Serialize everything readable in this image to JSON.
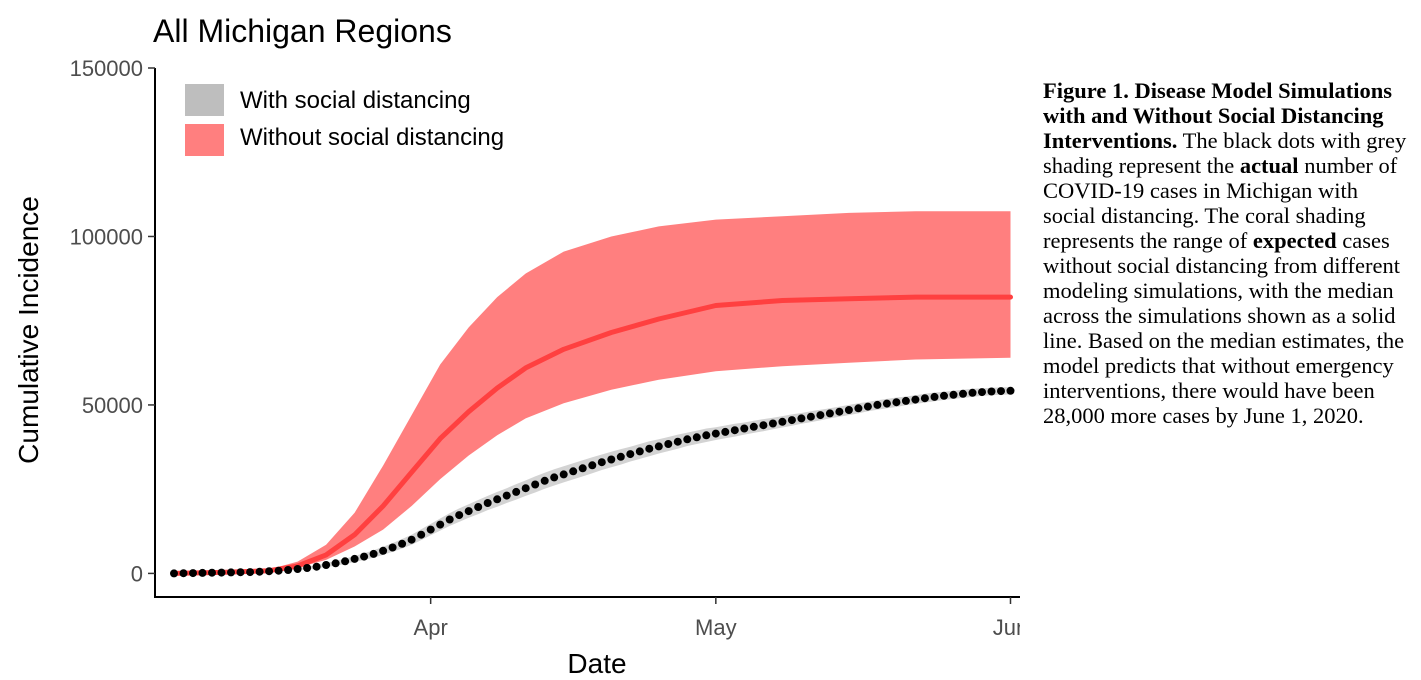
{
  "chart_data": {
    "type": "line",
    "title": "All Michigan Regions",
    "xlabel": "Date",
    "ylabel": "Cumulative Incidence",
    "x_type": "date",
    "xlim": [
      "2020-03-03",
      "2020-06-02"
    ],
    "ylim": [
      -7000,
      150000
    ],
    "yticks": [
      0,
      50000,
      100000,
      150000
    ],
    "ytick_labels": [
      "0",
      "50000",
      "100000",
      "150000"
    ],
    "xticks": [
      "2020-04-01",
      "2020-05-01",
      "2020-06-01"
    ],
    "xtick_labels": [
      "Apr",
      "May",
      "Jun"
    ],
    "grid": false,
    "legend_position": "top-left",
    "legend": [
      {
        "label": "With social distancing",
        "color": "#bebebe"
      },
      {
        "label": "Without social distancing",
        "color": "#ff7f7f"
      }
    ],
    "series": [
      {
        "name": "Without social distancing",
        "kind": "median-line-with-range",
        "color": "#ff4040",
        "band_color": "#ff7f7f",
        "x": [
          "2020-03-05",
          "2020-03-10",
          "2020-03-15",
          "2020-03-18",
          "2020-03-21",
          "2020-03-24",
          "2020-03-27",
          "2020-03-30",
          "2020-04-02",
          "2020-04-05",
          "2020-04-08",
          "2020-04-11",
          "2020-04-15",
          "2020-04-20",
          "2020-04-25",
          "2020-05-01",
          "2020-05-08",
          "2020-05-15",
          "2020-05-22",
          "2020-06-01"
        ],
        "median": [
          0,
          300,
          800,
          2200,
          5500,
          11500,
          20000,
          30000,
          40000,
          48000,
          55000,
          61000,
          66500,
          71500,
          75500,
          79500,
          81000,
          81500,
          82000,
          82000
        ],
        "lower": [
          0,
          200,
          600,
          1700,
          4000,
          8000,
          13000,
          20000,
          28000,
          35000,
          41000,
          46000,
          50500,
          54500,
          57500,
          60000,
          61500,
          62500,
          63500,
          64000
        ],
        "upper": [
          0,
          400,
          1200,
          3500,
          8500,
          18000,
          32000,
          47000,
          62000,
          73000,
          82000,
          89000,
          95500,
          100000,
          103000,
          105000,
          106000,
          107000,
          107500,
          107500
        ]
      },
      {
        "name": "With social distancing",
        "kind": "points-with-band",
        "color": "#000000",
        "band_color": "#d3d3d3",
        "x": [
          "2020-03-05",
          "2020-03-06",
          "2020-03-07",
          "2020-03-08",
          "2020-03-09",
          "2020-03-10",
          "2020-03-11",
          "2020-03-12",
          "2020-03-13",
          "2020-03-14",
          "2020-03-15",
          "2020-03-16",
          "2020-03-17",
          "2020-03-18",
          "2020-03-19",
          "2020-03-20",
          "2020-03-21",
          "2020-03-22",
          "2020-03-23",
          "2020-03-24",
          "2020-03-25",
          "2020-03-26",
          "2020-03-27",
          "2020-03-28",
          "2020-03-29",
          "2020-03-30",
          "2020-03-31",
          "2020-04-01",
          "2020-04-02",
          "2020-04-03",
          "2020-04-04",
          "2020-04-05",
          "2020-04-06",
          "2020-04-07",
          "2020-04-08",
          "2020-04-09",
          "2020-04-10",
          "2020-04-11",
          "2020-04-12",
          "2020-04-13",
          "2020-04-14",
          "2020-04-15",
          "2020-04-16",
          "2020-04-17",
          "2020-04-18",
          "2020-04-19",
          "2020-04-20",
          "2020-04-21",
          "2020-04-22",
          "2020-04-23",
          "2020-04-24",
          "2020-04-25",
          "2020-04-26",
          "2020-04-27",
          "2020-04-28",
          "2020-04-29",
          "2020-04-30",
          "2020-05-01",
          "2020-05-02",
          "2020-05-03",
          "2020-05-04",
          "2020-05-05",
          "2020-05-06",
          "2020-05-07",
          "2020-05-08",
          "2020-05-09",
          "2020-05-10",
          "2020-05-11",
          "2020-05-12",
          "2020-05-13",
          "2020-05-14",
          "2020-05-15",
          "2020-05-16",
          "2020-05-17",
          "2020-05-18",
          "2020-05-19",
          "2020-05-20",
          "2020-05-21",
          "2020-05-22",
          "2020-05-23",
          "2020-05-24",
          "2020-05-25",
          "2020-05-26",
          "2020-05-27",
          "2020-05-28",
          "2020-05-29",
          "2020-05-30",
          "2020-05-31",
          "2020-06-01"
        ],
        "values": [
          0,
          50,
          100,
          150,
          200,
          250,
          300,
          350,
          400,
          500,
          650,
          800,
          1000,
          1300,
          1600,
          2000,
          2500,
          3000,
          3600,
          4300,
          5000,
          5800,
          6700,
          7700,
          8800,
          10000,
          11500,
          13000,
          14500,
          16000,
          17300,
          18500,
          19700,
          20900,
          22000,
          23100,
          24200,
          25300,
          26400,
          27500,
          28500,
          29400,
          30300,
          31200,
          32100,
          33000,
          33800,
          34600,
          35400,
          36200,
          37000,
          37700,
          38400,
          39100,
          39800,
          40400,
          41000,
          41500,
          42000,
          42500,
          43000,
          43500,
          44000,
          44500,
          45000,
          45500,
          46000,
          46500,
          47000,
          47500,
          48000,
          48500,
          49000,
          49500,
          50000,
          50400,
          50800,
          51200,
          51600,
          52000,
          52400,
          52700,
          53000,
          53300,
          53600,
          53800,
          54000,
          54100,
          54200
        ],
        "band_halfwidth": [
          0,
          0,
          0,
          0,
          0,
          0,
          50,
          50,
          100,
          100,
          150,
          200,
          250,
          300,
          400,
          500,
          600,
          700,
          800,
          900,
          1000,
          1100,
          1200,
          1300,
          1400,
          1500,
          1600,
          1700,
          1800,
          1900,
          2000,
          2000,
          2100,
          2100,
          2200,
          2200,
          2300,
          2300,
          2400,
          2400,
          2400,
          2400,
          2400,
          2400,
          2400,
          2300,
          2300,
          2300,
          2200,
          2200,
          2200,
          2100,
          2100,
          2100,
          2000,
          2000,
          2000,
          1900,
          1900,
          1900,
          1800,
          1800,
          1800,
          1700,
          1700,
          1700,
          1600,
          1600,
          1600,
          1500,
          1500,
          1500,
          1500,
          1400,
          1400,
          1400,
          1400,
          1300,
          1300,
          1300,
          1300,
          1200,
          1200,
          1200,
          1200,
          1100,
          1100,
          1100,
          1100
        ]
      }
    ]
  },
  "caption": {
    "heading": "Figure 1. Disease Model Simulations with and Without Social Distancing Interventions.",
    "t1": " The black dots with grey shading represent the ",
    "b1": "actual",
    "t2": " number of COVID-19 cases in Michigan with social distancing. The coral shading represents the range of ",
    "b2": "expected",
    "t3": " cases without social distancing from different modeling simulations, with the median across the simulations shown as a solid line.  Based on the median estimates, the model predicts that without emergency interventions, there would have been 28,000 more cases by June 1, 2020."
  }
}
